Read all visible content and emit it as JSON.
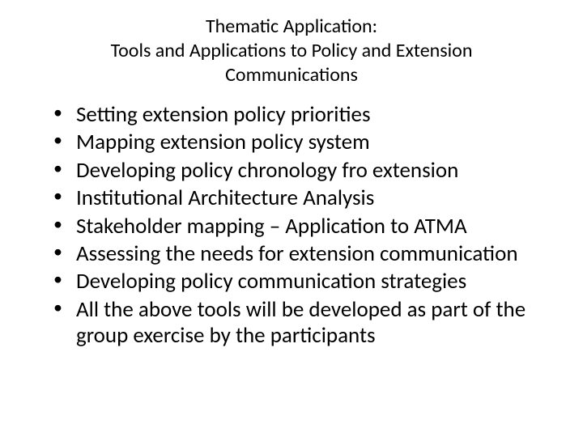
{
  "title": {
    "line1": "Thematic Application:",
    "line2": "Tools and Applications to Policy and Extension",
    "line3": "Communications"
  },
  "bullets": {
    "item0": "Setting extension policy priorities",
    "item1": "Mapping extension policy system",
    "item2": "Developing policy chronology fro extension",
    "item3": "Institutional Architecture Analysis",
    "item4": "Stakeholder mapping – Application to ATMA",
    "item5": "Assessing the needs for extension communication",
    "item6": "Developing policy communication strategies",
    "item7": "All the above tools will be developed as part of the group exercise by the participants"
  }
}
